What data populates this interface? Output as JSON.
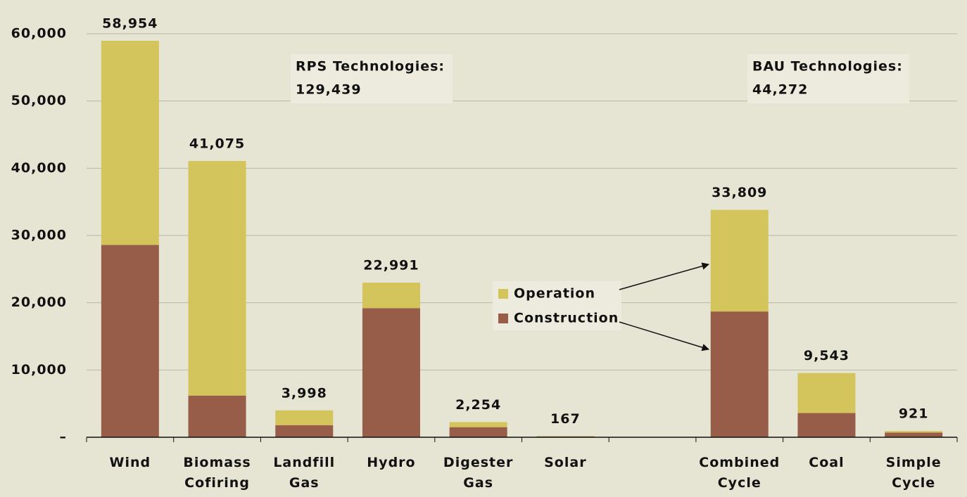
{
  "chart_data": {
    "type": "stacked_bar",
    "categories": [
      "Wind",
      "Biomass Cofiring",
      "Landfill Gas",
      "Hydro",
      "Digester Gas",
      "Solar",
      null,
      "Combined Cycle",
      "Coal",
      "Simple Cycle"
    ],
    "series": [
      {
        "name": "Construction",
        "color": "#975d48",
        "values": [
          28600,
          6200,
          1800,
          19200,
          1500,
          130,
          null,
          18700,
          3600,
          700
        ]
      },
      {
        "name": "Operation",
        "color": "#d4c45c",
        "values": [
          30354,
          34875,
          2198,
          3791,
          754,
          37,
          null,
          15109,
          5943,
          221
        ]
      }
    ],
    "totals": [
      58954,
      41075,
      3998,
      22991,
      2254,
      167,
      null,
      33809,
      9543,
      921
    ],
    "total_labels": [
      "58,954",
      "41,075",
      "3,998",
      "22,991",
      "2,254",
      "167",
      null,
      "33,809",
      "9,543",
      "921"
    ],
    "annotations": [
      {
        "title": "RPS Technologies:",
        "value": "129,439"
      },
      {
        "title": "BAU Technologies:",
        "value": "44,272"
      }
    ],
    "ylim": [
      0,
      60000
    ],
    "yticks": [
      {
        "value": 0,
        "label": "–"
      },
      {
        "value": 10000,
        "label": "10,000"
      },
      {
        "value": 20000,
        "label": "20,000"
      },
      {
        "value": 30000,
        "label": "30,000"
      },
      {
        "value": 40000,
        "label": "40,000"
      },
      {
        "value": 50000,
        "label": "50,000"
      },
      {
        "value": 60000,
        "label": "60,000"
      }
    ],
    "grid": true
  }
}
